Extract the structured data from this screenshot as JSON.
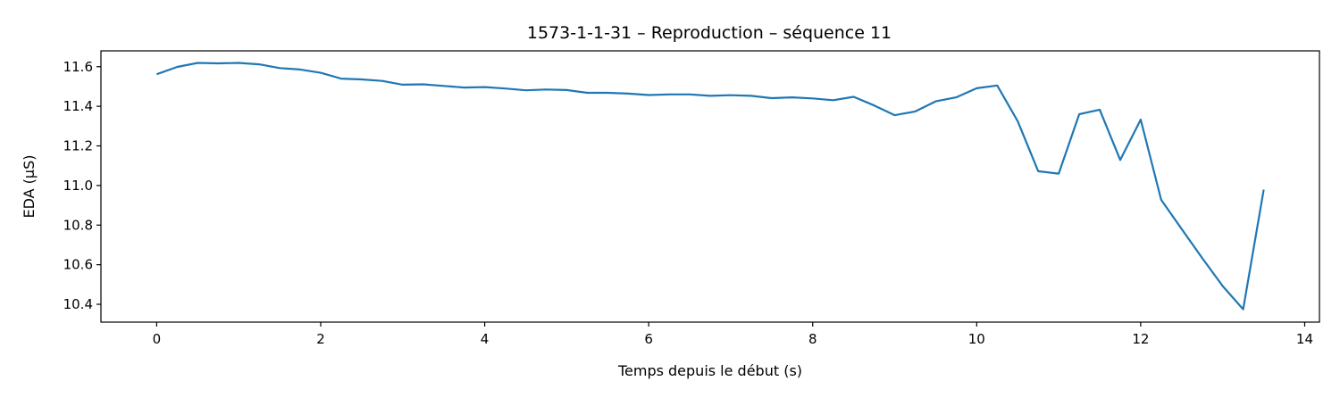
{
  "chart_data": {
    "type": "line",
    "title": "1573-1-1-31 – Reproduction – séquence 11",
    "xlabel": "Temps depuis le début (s)",
    "ylabel": "EDA (µS)",
    "xlim": [
      -0.68,
      14.18
    ],
    "ylim": [
      10.31,
      11.68
    ],
    "xticks": [
      0,
      2,
      4,
      6,
      8,
      10,
      12,
      14
    ],
    "xtick_labels": [
      "0",
      "2",
      "4",
      "6",
      "8",
      "10",
      "12",
      "14"
    ],
    "yticks": [
      10.4,
      10.6,
      10.8,
      11.0,
      11.2,
      11.4,
      11.6
    ],
    "ytick_labels": [
      "10.4",
      "10.6",
      "10.8",
      "11.0",
      "11.2",
      "11.4",
      "11.6"
    ],
    "grid": false,
    "line_color": "#1f77b4",
    "series": [
      {
        "x": [
          0,
          0.25,
          0.5,
          0.75,
          1.0,
          1.25,
          1.5,
          1.75,
          2.0,
          2.25,
          2.5,
          2.75,
          3.0,
          3.25,
          3.5,
          3.75,
          4.0,
          4.25,
          4.5,
          4.75,
          5.0,
          5.25,
          5.5,
          5.75,
          6.0,
          6.25,
          6.5,
          6.75,
          7.0,
          7.25,
          7.5,
          7.75,
          8.0,
          8.25,
          8.5,
          8.75,
          9.0,
          9.25,
          9.5,
          9.75,
          10.0,
          10.25,
          10.5,
          10.75,
          11.0,
          11.25,
          11.5,
          11.75,
          12.0,
          12.25,
          12.5,
          12.75,
          13.0,
          13.25,
          13.5
        ],
        "y": [
          11.562,
          11.599,
          11.619,
          11.617,
          11.619,
          11.612,
          11.593,
          11.586,
          11.569,
          11.54,
          11.536,
          11.528,
          11.509,
          11.511,
          11.503,
          11.495,
          11.497,
          11.49,
          11.481,
          11.485,
          11.482,
          11.468,
          11.468,
          11.464,
          11.457,
          11.46,
          11.46,
          11.453,
          11.456,
          11.453,
          11.441,
          11.445,
          11.44,
          11.431,
          11.448,
          11.404,
          11.355,
          11.374,
          11.425,
          11.445,
          11.491,
          11.505,
          11.325,
          11.072,
          11.06,
          11.36,
          11.383,
          11.129,
          11.333,
          10.928,
          10.78,
          10.634,
          10.492,
          10.375,
          10.979
        ]
      }
    ]
  }
}
